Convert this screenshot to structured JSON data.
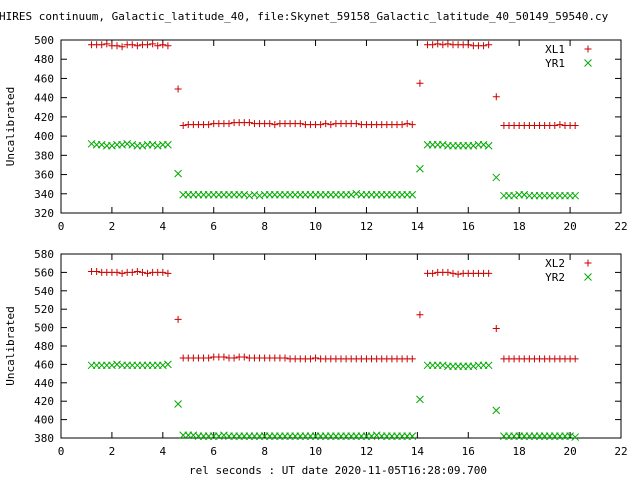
{
  "title": "HIRES continuum, Galactic_latitude_40, file:Skynet_59158_Galactic_latitude_40_50149_59540.cy",
  "xlabel": "rel seconds : UT date 2020-11-05T16:28:09.700",
  "chart_data": [
    {
      "type": "scatter",
      "ylabel": "Uncalibrated",
      "xlim": [
        0,
        22
      ],
      "ylim": [
        320,
        500
      ],
      "xticks": [
        0,
        2,
        4,
        6,
        8,
        10,
        12,
        14,
        16,
        18,
        20,
        22
      ],
      "yticks": [
        320,
        340,
        360,
        380,
        400,
        420,
        440,
        460,
        480,
        500
      ],
      "grid": false,
      "legend_position": "top-right",
      "series": [
        {
          "name": "XL1",
          "marker": "+",
          "color": "#cc0000",
          "x": [
            1.2,
            1.4,
            1.6,
            1.8,
            2.0,
            2.2,
            2.4,
            2.6,
            2.8,
            3.0,
            3.2,
            3.4,
            3.6,
            3.8,
            4.0,
            4.2,
            4.6,
            4.8,
            5.0,
            5.2,
            5.4,
            5.6,
            5.8,
            6.0,
            6.2,
            6.4,
            6.6,
            6.8,
            7.0,
            7.2,
            7.4,
            7.6,
            7.8,
            8.0,
            8.2,
            8.4,
            8.6,
            8.8,
            9.0,
            9.2,
            9.4,
            9.6,
            9.8,
            10.0,
            10.2,
            10.4,
            10.6,
            10.8,
            11.0,
            11.2,
            11.4,
            11.6,
            11.8,
            12.0,
            12.2,
            12.4,
            12.6,
            12.8,
            13.0,
            13.2,
            13.4,
            13.6,
            13.8,
            14.1,
            14.4,
            14.6,
            14.8,
            15.0,
            15.2,
            15.4,
            15.6,
            15.8,
            16.0,
            16.2,
            16.4,
            16.6,
            16.8,
            17.1,
            17.4,
            17.6,
            17.8,
            18.0,
            18.2,
            18.4,
            18.6,
            18.8,
            19.0,
            19.2,
            19.4,
            19.6,
            19.8,
            20.0,
            20.2
          ],
          "y": [
            495,
            495,
            495,
            496,
            494,
            494,
            493,
            495,
            495,
            494,
            495,
            495,
            496,
            494,
            495,
            494,
            449,
            411,
            412,
            412,
            412,
            412,
            412,
            413,
            413,
            413,
            413,
            414,
            414,
            414,
            414,
            413,
            413,
            413,
            413,
            412,
            413,
            413,
            413,
            413,
            413,
            412,
            412,
            412,
            412,
            413,
            412,
            413,
            413,
            413,
            413,
            413,
            412,
            412,
            412,
            412,
            412,
            412,
            412,
            412,
            412,
            413,
            412,
            455,
            495,
            495,
            496,
            495,
            496,
            495,
            495,
            495,
            495,
            494,
            494,
            494,
            495,
            441,
            411,
            411,
            411,
            411,
            411,
            411,
            411,
            411,
            411,
            411,
            411,
            412,
            411,
            411,
            411
          ]
        },
        {
          "name": "YR1",
          "marker": "x",
          "color": "#00aa00",
          "x": [
            1.2,
            1.4,
            1.6,
            1.8,
            2.0,
            2.2,
            2.4,
            2.6,
            2.8,
            3.0,
            3.2,
            3.4,
            3.6,
            3.8,
            4.0,
            4.2,
            4.6,
            4.8,
            5.0,
            5.2,
            5.4,
            5.6,
            5.8,
            6.0,
            6.2,
            6.4,
            6.6,
            6.8,
            7.0,
            7.2,
            7.4,
            7.6,
            7.8,
            8.0,
            8.2,
            8.4,
            8.6,
            8.8,
            9.0,
            9.2,
            9.4,
            9.6,
            9.8,
            10.0,
            10.2,
            10.4,
            10.6,
            10.8,
            11.0,
            11.2,
            11.4,
            11.6,
            11.8,
            12.0,
            12.2,
            12.4,
            12.6,
            12.8,
            13.0,
            13.2,
            13.4,
            13.6,
            13.8,
            14.1,
            14.4,
            14.6,
            14.8,
            15.0,
            15.2,
            15.4,
            15.6,
            15.8,
            16.0,
            16.2,
            16.4,
            16.6,
            16.8,
            17.1,
            17.4,
            17.6,
            17.8,
            18.0,
            18.2,
            18.4,
            18.6,
            18.8,
            19.0,
            19.2,
            19.4,
            19.6,
            19.8,
            20.0,
            20.2
          ],
          "y": [
            392,
            391,
            391,
            390,
            390,
            391,
            391,
            392,
            391,
            390,
            390,
            391,
            391,
            390,
            391,
            391,
            361,
            339,
            339,
            339,
            339,
            339,
            339,
            339,
            339,
            339,
            339,
            339,
            339,
            339,
            338,
            339,
            338,
            339,
            339,
            339,
            339,
            339,
            339,
            339,
            339,
            339,
            339,
            339,
            339,
            339,
            339,
            339,
            339,
            339,
            339,
            340,
            339,
            339,
            339,
            339,
            339,
            339,
            339,
            339,
            339,
            339,
            339,
            366,
            391,
            391,
            391,
            391,
            390,
            390,
            390,
            390,
            390,
            390,
            391,
            391,
            390,
            357,
            338,
            338,
            338,
            339,
            339,
            338,
            338,
            338,
            338,
            338,
            338,
            338,
            338,
            338,
            338
          ]
        }
      ]
    },
    {
      "type": "scatter",
      "ylabel": "Uncalibrated",
      "xlim": [
        0,
        22
      ],
      "ylim": [
        380,
        580
      ],
      "xticks": [
        0,
        2,
        4,
        6,
        8,
        10,
        12,
        14,
        16,
        18,
        20,
        22
      ],
      "yticks": [
        380,
        400,
        420,
        440,
        460,
        480,
        500,
        520,
        540,
        560,
        580
      ],
      "grid": false,
      "legend_position": "top-right",
      "series": [
        {
          "name": "XL2",
          "marker": "+",
          "color": "#cc0000",
          "x": [
            1.2,
            1.4,
            1.6,
            1.8,
            2.0,
            2.2,
            2.4,
            2.6,
            2.8,
            3.0,
            3.2,
            3.4,
            3.6,
            3.8,
            4.0,
            4.2,
            4.6,
            4.8,
            5.0,
            5.2,
            5.4,
            5.6,
            5.8,
            6.0,
            6.2,
            6.4,
            6.6,
            6.8,
            7.0,
            7.2,
            7.4,
            7.6,
            7.8,
            8.0,
            8.2,
            8.4,
            8.6,
            8.8,
            9.0,
            9.2,
            9.4,
            9.6,
            9.8,
            10.0,
            10.2,
            10.4,
            10.6,
            10.8,
            11.0,
            11.2,
            11.4,
            11.6,
            11.8,
            12.0,
            12.2,
            12.4,
            12.6,
            12.8,
            13.0,
            13.2,
            13.4,
            13.6,
            13.8,
            14.1,
            14.4,
            14.6,
            14.8,
            15.0,
            15.2,
            15.4,
            15.6,
            15.8,
            16.0,
            16.2,
            16.4,
            16.6,
            16.8,
            17.1,
            17.4,
            17.6,
            17.8,
            18.0,
            18.2,
            18.4,
            18.6,
            18.8,
            19.0,
            19.2,
            19.4,
            19.6,
            19.8,
            20.0,
            20.2
          ],
          "y": [
            561,
            561,
            560,
            560,
            560,
            560,
            559,
            560,
            560,
            561,
            560,
            559,
            560,
            560,
            560,
            559,
            509,
            467,
            467,
            467,
            467,
            467,
            467,
            468,
            468,
            468,
            467,
            467,
            468,
            468,
            467,
            467,
            467,
            467,
            467,
            467,
            467,
            467,
            466,
            466,
            466,
            466,
            466,
            467,
            466,
            466,
            466,
            466,
            466,
            466,
            466,
            466,
            466,
            466,
            466,
            466,
            466,
            466,
            466,
            466,
            466,
            466,
            466,
            514,
            559,
            559,
            560,
            560,
            560,
            559,
            558,
            559,
            559,
            559,
            559,
            559,
            559,
            499,
            466,
            466,
            466,
            466,
            466,
            466,
            466,
            466,
            466,
            466,
            466,
            466,
            466,
            466,
            466
          ]
        },
        {
          "name": "YR2",
          "marker": "x",
          "color": "#00aa00",
          "x": [
            1.2,
            1.4,
            1.6,
            1.8,
            2.0,
            2.2,
            2.4,
            2.6,
            2.8,
            3.0,
            3.2,
            3.4,
            3.6,
            3.8,
            4.0,
            4.2,
            4.6,
            4.8,
            5.0,
            5.2,
            5.4,
            5.6,
            5.8,
            6.0,
            6.2,
            6.4,
            6.6,
            6.8,
            7.0,
            7.2,
            7.4,
            7.6,
            7.8,
            8.0,
            8.2,
            8.4,
            8.6,
            8.8,
            9.0,
            9.2,
            9.4,
            9.6,
            9.8,
            10.0,
            10.2,
            10.4,
            10.6,
            10.8,
            11.0,
            11.2,
            11.4,
            11.6,
            11.8,
            12.0,
            12.2,
            12.4,
            12.6,
            12.8,
            13.0,
            13.2,
            13.4,
            13.6,
            13.8,
            14.1,
            14.4,
            14.6,
            14.8,
            15.0,
            15.2,
            15.4,
            15.6,
            15.8,
            16.0,
            16.2,
            16.4,
            16.6,
            16.8,
            17.1,
            17.4,
            17.6,
            17.8,
            18.0,
            18.2,
            18.4,
            18.6,
            18.8,
            19.0,
            19.2,
            19.4,
            19.6,
            19.8,
            20.0,
            20.2
          ],
          "y": [
            459,
            459,
            459,
            459,
            459,
            460,
            459,
            459,
            459,
            459,
            459,
            459,
            459,
            459,
            459,
            460,
            417,
            383,
            383,
            383,
            382,
            382,
            382,
            382,
            382,
            383,
            382,
            382,
            382,
            382,
            382,
            382,
            382,
            382,
            382,
            382,
            382,
            382,
            382,
            382,
            382,
            382,
            382,
            382,
            382,
            382,
            382,
            382,
            382,
            382,
            382,
            382,
            382,
            382,
            382,
            383,
            382,
            382,
            382,
            382,
            382,
            382,
            382,
            422,
            459,
            459,
            459,
            459,
            458,
            458,
            458,
            458,
            458,
            458,
            459,
            459,
            459,
            410,
            382,
            382,
            382,
            382,
            382,
            382,
            382,
            382,
            382,
            382,
            382,
            382,
            382,
            382,
            381
          ]
        }
      ]
    }
  ]
}
